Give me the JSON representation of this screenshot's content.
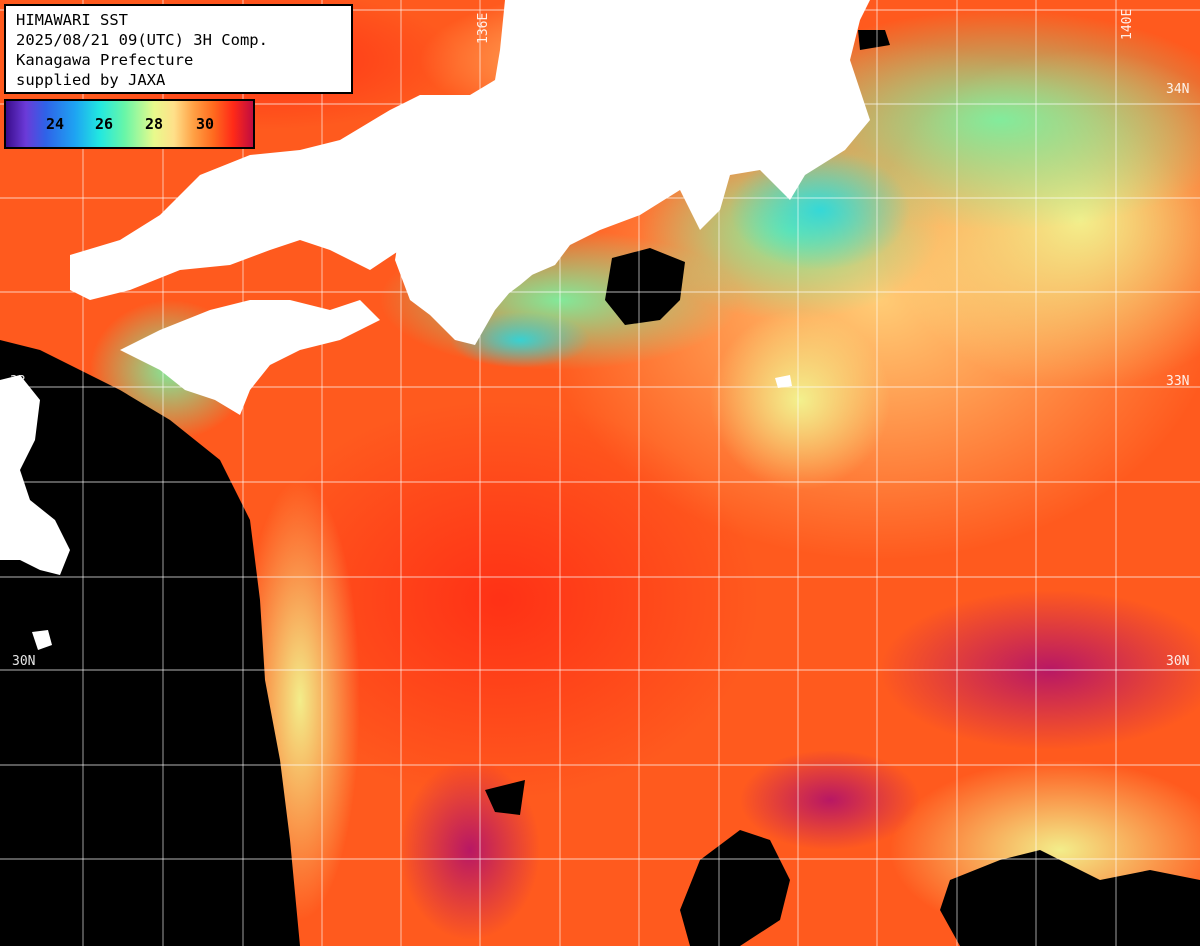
{
  "title": {
    "line1": "HIMAWARI SST",
    "line2": "2025/08/21 09(UTC) 3H Comp.",
    "line3": "Kanagawa Prefecture",
    "line4": "supplied by JAXA"
  },
  "legend": {
    "ticks": [
      "24",
      "26",
      "28",
      "30"
    ],
    "colors": {
      "cold": "#3a0d8c",
      "cool": "#1ea4f2",
      "mid": "#68f6a8",
      "warm": "#ffe08a",
      "hot": "#ff2a18",
      "hottest": "#c00c40"
    }
  },
  "grid": {
    "lat_labels": {
      "n33_left": "33",
      "n33_right": "33N",
      "n34_right": "34N",
      "n30_left": "30N",
      "n30_right": "30N"
    },
    "lon_labels": {
      "e136": "136E",
      "e140": "140E"
    }
  },
  "colors": {
    "land": "#ffffff",
    "no_data": "#000000",
    "sea_base": "#ff5a1e",
    "gridline": "#ffffff"
  }
}
